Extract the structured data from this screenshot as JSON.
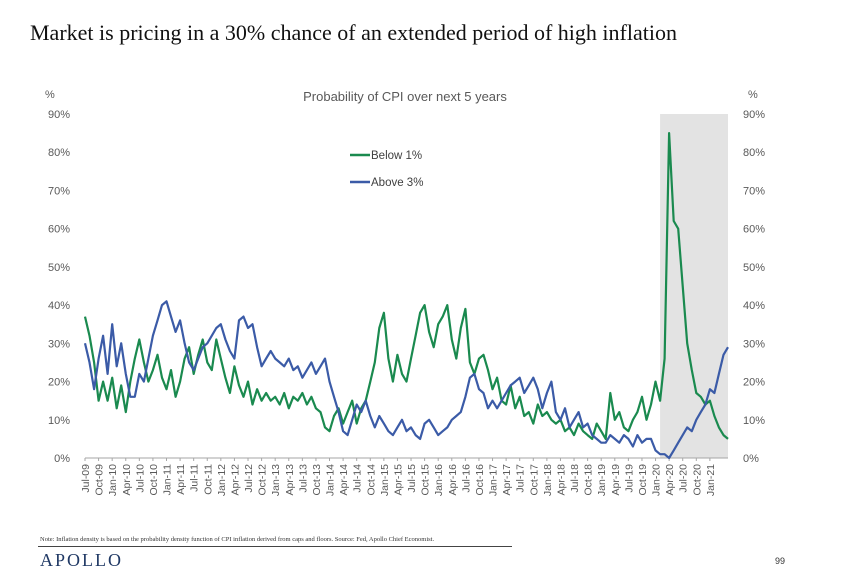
{
  "page": {
    "title": "Market is pricing in a 30% chance of an extended period of high inflation",
    "footnote": "Note: Inflation density is based on the probability density function of CPI inflation derived from caps and floors. Source: Fed, Apollo Chief Economist.",
    "logo_text": "APOLLO",
    "page_number": "99"
  },
  "chart_data": {
    "type": "line",
    "title": "Probability of CPI over next 5 years",
    "ylabel_left": "%",
    "ylabel_right": "%",
    "ylim": [
      0,
      90
    ],
    "y_ticks": [
      "0%",
      "10%",
      "20%",
      "30%",
      "40%",
      "50%",
      "60%",
      "70%",
      "80%",
      "90%"
    ],
    "x_tick_labels": [
      "Jul-09",
      "Oct-09",
      "Jan-10",
      "Apr-10",
      "Jul-10",
      "Oct-10",
      "Jan-11",
      "Apr-11",
      "Jul-11",
      "Oct-11",
      "Jan-12",
      "Apr-12",
      "Jul-12",
      "Oct-12",
      "Jan-13",
      "Apr-13",
      "Jul-13",
      "Oct-13",
      "Jan-14",
      "Apr-14",
      "Jul-14",
      "Oct-14",
      "Jan-15",
      "Apr-15",
      "Jul-15",
      "Oct-15",
      "Jan-16",
      "Apr-16",
      "Jul-16",
      "Oct-16",
      "Jan-17",
      "Apr-17",
      "Jul-17",
      "Oct-17",
      "Jan-18",
      "Apr-18",
      "Jul-18",
      "Oct-18",
      "Jan-19",
      "Apr-19",
      "Jul-19",
      "Oct-19",
      "Jan-20",
      "Apr-20",
      "Jul-20",
      "Oct-20",
      "Jan-21"
    ],
    "x_range_months": [
      0,
      142
    ],
    "shaded_region": {
      "start_month": 127,
      "end_month": 142,
      "color": "#e3e3e3"
    },
    "legend": [
      {
        "name": "Below 1%",
        "color": "#1a8a4f"
      },
      {
        "name": "Above 3%",
        "color": "#3b5ba7"
      }
    ],
    "series": [
      {
        "name": "Below 1%",
        "color": "#1a8a4f",
        "points": [
          [
            0,
            37
          ],
          [
            1,
            32
          ],
          [
            2,
            25
          ],
          [
            3,
            15
          ],
          [
            4,
            20
          ],
          [
            5,
            15
          ],
          [
            6,
            21
          ],
          [
            7,
            13
          ],
          [
            8,
            19
          ],
          [
            9,
            12
          ],
          [
            10,
            20
          ],
          [
            11,
            26
          ],
          [
            12,
            31
          ],
          [
            13,
            25
          ],
          [
            14,
            20
          ],
          [
            15,
            23
          ],
          [
            16,
            27
          ],
          [
            17,
            21
          ],
          [
            18,
            18
          ],
          [
            19,
            23
          ],
          [
            20,
            16
          ],
          [
            21,
            20
          ],
          [
            22,
            26
          ],
          [
            23,
            29
          ],
          [
            24,
            22
          ],
          [
            25,
            27
          ],
          [
            26,
            31
          ],
          [
            27,
            25
          ],
          [
            28,
            23
          ],
          [
            29,
            31
          ],
          [
            30,
            26
          ],
          [
            31,
            21
          ],
          [
            32,
            17
          ],
          [
            33,
            24
          ],
          [
            34,
            19
          ],
          [
            35,
            16
          ],
          [
            36,
            20
          ],
          [
            37,
            14
          ],
          [
            38,
            18
          ],
          [
            39,
            15
          ],
          [
            40,
            17
          ],
          [
            41,
            15
          ],
          [
            42,
            16
          ],
          [
            43,
            14
          ],
          [
            44,
            17
          ],
          [
            45,
            13
          ],
          [
            46,
            16
          ],
          [
            47,
            15
          ],
          [
            48,
            17
          ],
          [
            49,
            14
          ],
          [
            50,
            16
          ],
          [
            51,
            13
          ],
          [
            52,
            12
          ],
          [
            53,
            8
          ],
          [
            54,
            7
          ],
          [
            55,
            11
          ],
          [
            56,
            13
          ],
          [
            57,
            9
          ],
          [
            58,
            12
          ],
          [
            59,
            15
          ],
          [
            60,
            9
          ],
          [
            61,
            13
          ],
          [
            62,
            15
          ],
          [
            63,
            20
          ],
          [
            64,
            25
          ],
          [
            65,
            34
          ],
          [
            66,
            38
          ],
          [
            67,
            26
          ],
          [
            68,
            20
          ],
          [
            69,
            27
          ],
          [
            70,
            22
          ],
          [
            71,
            20
          ],
          [
            72,
            26
          ],
          [
            73,
            32
          ],
          [
            74,
            38
          ],
          [
            75,
            40
          ],
          [
            76,
            33
          ],
          [
            77,
            29
          ],
          [
            78,
            35
          ],
          [
            79,
            37
          ],
          [
            80,
            40
          ],
          [
            81,
            31
          ],
          [
            82,
            26
          ],
          [
            83,
            34
          ],
          [
            84,
            39
          ],
          [
            85,
            25
          ],
          [
            86,
            22
          ],
          [
            87,
            26
          ],
          [
            88,
            27
          ],
          [
            89,
            23
          ],
          [
            90,
            18
          ],
          [
            91,
            21
          ],
          [
            92,
            15
          ],
          [
            93,
            14
          ],
          [
            94,
            19
          ],
          [
            95,
            13
          ],
          [
            96,
            16
          ],
          [
            97,
            11
          ],
          [
            98,
            12
          ],
          [
            99,
            9
          ],
          [
            100,
            14
          ],
          [
            101,
            11
          ],
          [
            102,
            12
          ],
          [
            103,
            10
          ],
          [
            104,
            9
          ],
          [
            105,
            10
          ],
          [
            106,
            7
          ],
          [
            107,
            8
          ],
          [
            108,
            6
          ],
          [
            109,
            9
          ],
          [
            110,
            7
          ],
          [
            111,
            6
          ],
          [
            112,
            5
          ],
          [
            113,
            9
          ],
          [
            114,
            7
          ],
          [
            115,
            5
          ],
          [
            116,
            17
          ],
          [
            117,
            10
          ],
          [
            118,
            12
          ],
          [
            119,
            8
          ],
          [
            120,
            7
          ],
          [
            121,
            10
          ],
          [
            122,
            12
          ],
          [
            123,
            16
          ],
          [
            124,
            10
          ],
          [
            125,
            14
          ],
          [
            126,
            20
          ],
          [
            127,
            15
          ],
          [
            128,
            26
          ],
          [
            129,
            85
          ],
          [
            130,
            62
          ],
          [
            131,
            60
          ],
          [
            132,
            45
          ],
          [
            133,
            30
          ],
          [
            134,
            23
          ],
          [
            135,
            17
          ],
          [
            136,
            16
          ],
          [
            137,
            14
          ],
          [
            138,
            15
          ],
          [
            139,
            11
          ],
          [
            140,
            8
          ],
          [
            141,
            6
          ],
          [
            142,
            5
          ]
        ]
      },
      {
        "name": "Above 3%",
        "color": "#3b5ba7",
        "points": [
          [
            0,
            30
          ],
          [
            1,
            25
          ],
          [
            2,
            18
          ],
          [
            3,
            26
          ],
          [
            4,
            32
          ],
          [
            5,
            22
          ],
          [
            6,
            35
          ],
          [
            7,
            24
          ],
          [
            8,
            30
          ],
          [
            9,
            22
          ],
          [
            10,
            16
          ],
          [
            11,
            16
          ],
          [
            12,
            22
          ],
          [
            13,
            20
          ],
          [
            14,
            26
          ],
          [
            15,
            32
          ],
          [
            16,
            36
          ],
          [
            17,
            40
          ],
          [
            18,
            41
          ],
          [
            19,
            37
          ],
          [
            20,
            33
          ],
          [
            21,
            36
          ],
          [
            22,
            30
          ],
          [
            23,
            25
          ],
          [
            24,
            23
          ],
          [
            25,
            26
          ],
          [
            26,
            29
          ],
          [
            27,
            30
          ],
          [
            28,
            32
          ],
          [
            29,
            34
          ],
          [
            30,
            35
          ],
          [
            31,
            31
          ],
          [
            32,
            28
          ],
          [
            33,
            26
          ],
          [
            34,
            36
          ],
          [
            35,
            37
          ],
          [
            36,
            34
          ],
          [
            37,
            35
          ],
          [
            38,
            29
          ],
          [
            39,
            24
          ],
          [
            40,
            26
          ],
          [
            41,
            28
          ],
          [
            42,
            26
          ],
          [
            43,
            25
          ],
          [
            44,
            24
          ],
          [
            45,
            26
          ],
          [
            46,
            23
          ],
          [
            47,
            24
          ],
          [
            48,
            21
          ],
          [
            49,
            23
          ],
          [
            50,
            25
          ],
          [
            51,
            22
          ],
          [
            52,
            24
          ],
          [
            53,
            26
          ],
          [
            54,
            20
          ],
          [
            55,
            16
          ],
          [
            56,
            12
          ],
          [
            57,
            7
          ],
          [
            58,
            6
          ],
          [
            59,
            10
          ],
          [
            60,
            14
          ],
          [
            61,
            12
          ],
          [
            62,
            15
          ],
          [
            63,
            11
          ],
          [
            64,
            8
          ],
          [
            65,
            11
          ],
          [
            66,
            9
          ],
          [
            67,
            7
          ],
          [
            68,
            6
          ],
          [
            69,
            8
          ],
          [
            70,
            10
          ],
          [
            71,
            7
          ],
          [
            72,
            8
          ],
          [
            73,
            6
          ],
          [
            74,
            5
          ],
          [
            75,
            9
          ],
          [
            76,
            10
          ],
          [
            77,
            8
          ],
          [
            78,
            6
          ],
          [
            79,
            7
          ],
          [
            80,
            8
          ],
          [
            81,
            10
          ],
          [
            82,
            11
          ],
          [
            83,
            12
          ],
          [
            84,
            16
          ],
          [
            85,
            21
          ],
          [
            86,
            22
          ],
          [
            87,
            18
          ],
          [
            88,
            17
          ],
          [
            89,
            13
          ],
          [
            90,
            15
          ],
          [
            91,
            13
          ],
          [
            92,
            15
          ],
          [
            93,
            17
          ],
          [
            94,
            19
          ],
          [
            95,
            20
          ],
          [
            96,
            21
          ],
          [
            97,
            17
          ],
          [
            98,
            19
          ],
          [
            99,
            21
          ],
          [
            100,
            18
          ],
          [
            101,
            13
          ],
          [
            102,
            17
          ],
          [
            103,
            20
          ],
          [
            104,
            12
          ],
          [
            105,
            10
          ],
          [
            106,
            13
          ],
          [
            107,
            8
          ],
          [
            108,
            10
          ],
          [
            109,
            12
          ],
          [
            110,
            8
          ],
          [
            111,
            9
          ],
          [
            112,
            6
          ],
          [
            113,
            5
          ],
          [
            114,
            4
          ],
          [
            115,
            4
          ],
          [
            116,
            6
          ],
          [
            117,
            5
          ],
          [
            118,
            4
          ],
          [
            119,
            6
          ],
          [
            120,
            5
          ],
          [
            121,
            3
          ],
          [
            122,
            6
          ],
          [
            123,
            4
          ],
          [
            124,
            5
          ],
          [
            125,
            5
          ],
          [
            126,
            2
          ],
          [
            127,
            1
          ],
          [
            128,
            1
          ],
          [
            129,
            0
          ],
          [
            130,
            2
          ],
          [
            131,
            4
          ],
          [
            132,
            6
          ],
          [
            133,
            8
          ],
          [
            134,
            7
          ],
          [
            135,
            10
          ],
          [
            136,
            12
          ],
          [
            137,
            14
          ],
          [
            138,
            18
          ],
          [
            139,
            17
          ],
          [
            140,
            22
          ],
          [
            141,
            27
          ],
          [
            142,
            29
          ]
        ]
      }
    ]
  }
}
